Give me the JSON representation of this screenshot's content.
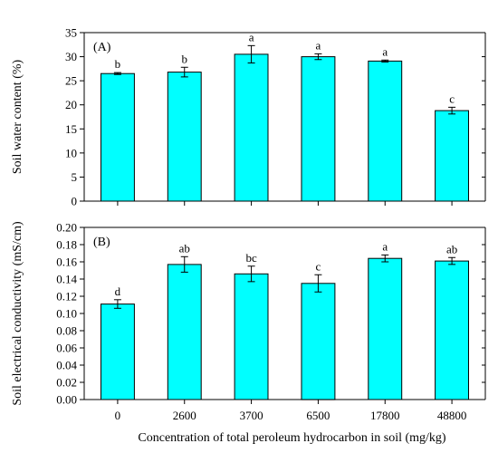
{
  "chart_data": [
    {
      "type": "bar",
      "panel_label": "(A)",
      "categories": [
        "0",
        "2600",
        "3700",
        "6500",
        "17800",
        "48800"
      ],
      "values": [
        26.5,
        26.8,
        30.5,
        30.0,
        29.1,
        18.8
      ],
      "errors": [
        0.2,
        1.0,
        1.8,
        0.6,
        0.2,
        0.7
      ],
      "letters": [
        "b",
        "b",
        "a",
        "a",
        "a",
        "c"
      ],
      "ylabel": "Soil water content (%)",
      "ylim": [
        0,
        35
      ],
      "yticks": [
        0,
        5,
        10,
        15,
        20,
        25,
        30,
        35
      ],
      "ytick_labels": [
        "0",
        "5",
        "10",
        "15",
        "20",
        "25",
        "30",
        "35"
      ],
      "bar_color": "#00FFFF",
      "grid": false
    },
    {
      "type": "bar",
      "panel_label": "(B)",
      "categories": [
        "0",
        "2600",
        "3700",
        "6500",
        "17800",
        "48800"
      ],
      "values": [
        0.111,
        0.157,
        0.146,
        0.135,
        0.164,
        0.161
      ],
      "errors": [
        0.005,
        0.009,
        0.009,
        0.01,
        0.004,
        0.004
      ],
      "letters": [
        "d",
        "ab",
        "bc",
        "c",
        "a",
        "ab"
      ],
      "ylabel": "Soil electrical conductivity (mS/cm)",
      "xlabel": "Concentration of total peroleum hydrocarbon in soil (mg/kg)",
      "ylim": [
        0,
        0.2
      ],
      "yticks": [
        0,
        0.02,
        0.04,
        0.06,
        0.08,
        0.1,
        0.12,
        0.14,
        0.16,
        0.18,
        0.2
      ],
      "ytick_labels": [
        "0.00",
        "0.02",
        "0.04",
        "0.06",
        "0.08",
        "0.10",
        "0.12",
        "0.14",
        "0.16",
        "0.18",
        "0.20"
      ],
      "bar_color": "#00FFFF",
      "grid": false
    }
  ]
}
